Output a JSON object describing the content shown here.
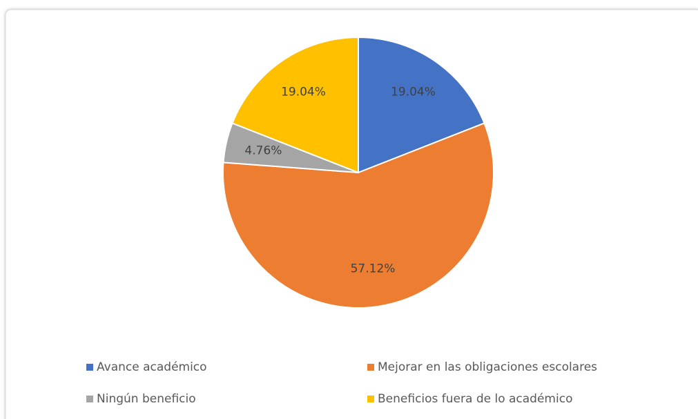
{
  "chart_data": {
    "type": "pie",
    "categories": [
      "Avance académico",
      "Mejorar en las obligaciones escolares",
      "Ningún beneficio",
      "Beneficios fuera de lo académico"
    ],
    "values": [
      19.04,
      57.12,
      4.76,
      19.04
    ],
    "value_labels": [
      "19.04%",
      "57.12%",
      "4.76%",
      "19.04%"
    ],
    "colors": [
      "#4472c4",
      "#ed7d31",
      "#a5a5a5",
      "#ffc000"
    ],
    "legend": "bottom"
  }
}
